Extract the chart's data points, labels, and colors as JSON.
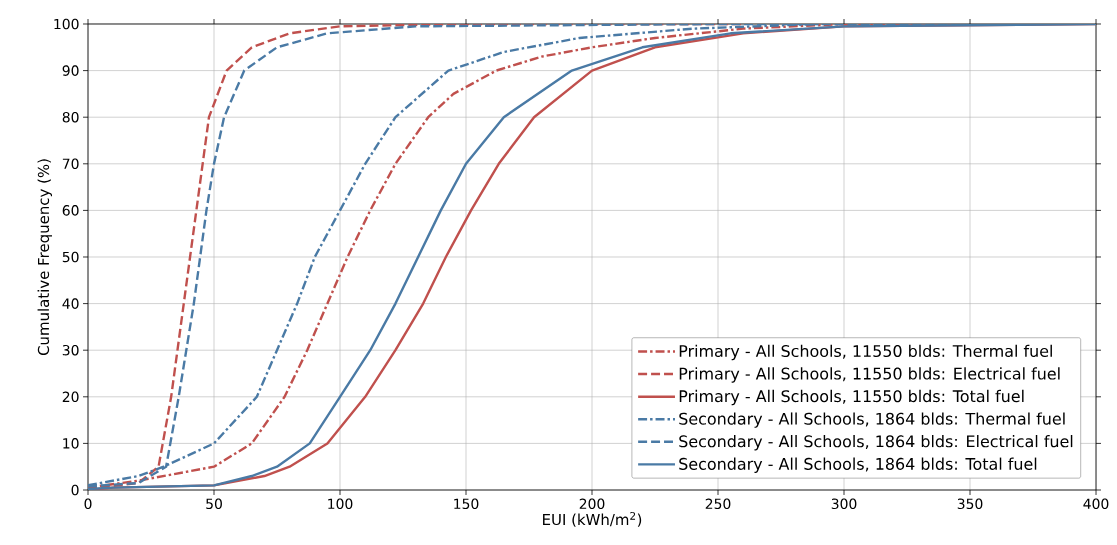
{
  "chart_data": {
    "type": "line",
    "xlabel": "EUI (kWh/m$^{2}$)",
    "ylabel": "Cumulative Frequency (%)",
    "xlim": [
      0,
      400
    ],
    "ylim": [
      0,
      100
    ],
    "xticks": [
      0,
      50,
      100,
      150,
      200,
      250,
      300,
      350,
      400
    ],
    "yticks": [
      0,
      10,
      20,
      30,
      40,
      50,
      60,
      70,
      80,
      90,
      100
    ],
    "grid": true,
    "legend": "bottom right",
    "marker": "none",
    "series": [
      {
        "name": "Primary - All Schools, 11550 blds: Thermal fuel",
        "color": "#c0504d",
        "line_style": "dashdot",
        "x": [
          0,
          20,
          50,
          65,
          78,
          87,
          95,
          103,
          112,
          122,
          135,
          145,
          162,
          180,
          200,
          225,
          260,
          300,
          330
        ],
        "values": [
          0.5,
          2,
          5,
          10,
          20,
          30,
          40,
          50,
          60,
          70,
          80,
          85,
          90,
          93,
          95,
          97,
          99,
          100,
          100
        ]
      },
      {
        "name": "Primary - All Schools, 11550 blds: Electrical fuel",
        "color": "#c0504d",
        "line_style": "dashed",
        "x": [
          0,
          20,
          28,
          33,
          38,
          43,
          48,
          55,
          65,
          80,
          100,
          150,
          260
        ],
        "values": [
          0.3,
          1.5,
          5,
          20,
          40,
          60,
          80,
          90,
          95,
          98,
          99.5,
          100,
          100
        ]
      },
      {
        "name": "Primary - All Schools, 11550 blds: Total fuel",
        "color": "#c0504d",
        "line_style": "solid",
        "x": [
          0,
          10,
          50,
          70,
          80,
          95,
          110,
          122,
          133,
          142,
          152,
          163,
          177,
          200,
          225,
          260,
          300,
          400
        ],
        "values": [
          0,
          0.5,
          1,
          3,
          5,
          10,
          20,
          30,
          40,
          50,
          60,
          70,
          80,
          90,
          95,
          98,
          99.5,
          100
        ]
      },
      {
        "name": "Secondary - All Schools, 1864 blds: Thermal fuel",
        "color": "#4a7aa5",
        "line_style": "dashdot",
        "x": [
          0,
          20,
          30,
          50,
          67,
          75,
          83,
          90,
          100,
          110,
          122,
          143,
          165,
          195,
          240,
          290
        ],
        "values": [
          1,
          3,
          5,
          10,
          20,
          30,
          40,
          50,
          60,
          70,
          80,
          90,
          94,
          97,
          99,
          100
        ]
      },
      {
        "name": "Secondary - All Schools, 1864 blds: Electrical fuel",
        "color": "#4a7aa5",
        "line_style": "dashed",
        "x": [
          0,
          20,
          31,
          36,
          42,
          47,
          50,
          54,
          62,
          75,
          95,
          130,
          250,
          360
        ],
        "values": [
          0.8,
          1.5,
          5,
          20,
          40,
          60,
          70,
          80,
          90,
          95,
          98,
          99.5,
          100,
          100
        ]
      },
      {
        "name": "Secondary - All Schools, 1864 blds: Total fuel",
        "color": "#4a7aa5",
        "line_style": "solid",
        "x": [
          0,
          10,
          50,
          65,
          75,
          88,
          100,
          112,
          122,
          131,
          140,
          150,
          165,
          192,
          220,
          255,
          300,
          400
        ],
        "values": [
          0.2,
          0.5,
          1,
          3,
          5,
          10,
          20,
          30,
          40,
          50,
          60,
          70,
          80,
          90,
          95,
          98,
          99.5,
          100
        ]
      }
    ]
  }
}
